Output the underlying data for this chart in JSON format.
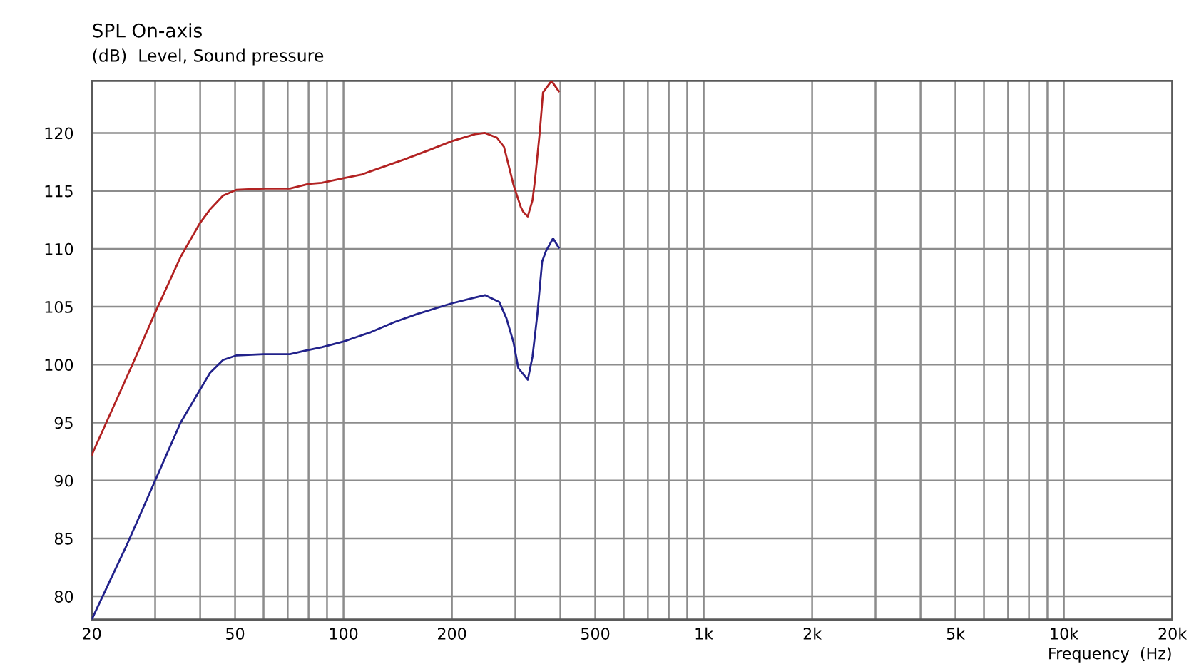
{
  "chart_data": {
    "type": "line",
    "title": "SPL On-axis",
    "ylabel": "(dB)  Level, Sound pressure",
    "xlabel": "Frequency  (Hz)",
    "log": "x",
    "grid": true,
    "marker": "none",
    "line_style": "solid",
    "xlim": [
      20,
      20000
    ],
    "xticks": [
      20,
      {
        "value": 30,
        "label": null
      },
      {
        "value": 40,
        "label": null
      },
      50,
      {
        "value": 60,
        "label": null
      },
      {
        "value": 70,
        "label": null
      },
      {
        "value": 80,
        "label": null
      },
      {
        "value": 90,
        "label": null
      },
      100,
      200,
      {
        "value": 300,
        "label": null
      },
      {
        "value": 400,
        "label": null
      },
      500,
      {
        "value": 600,
        "label": null
      },
      {
        "value": 700,
        "label": null
      },
      {
        "value": 800,
        "label": null
      },
      {
        "value": 900,
        "label": null
      },
      {
        "value": 1000,
        "label": "1k"
      },
      {
        "value": 2000,
        "label": "2k"
      },
      {
        "value": 3000,
        "label": null
      },
      {
        "value": 4000,
        "label": null
      },
      {
        "value": 5000,
        "label": "5k"
      },
      {
        "value": 6000,
        "label": null
      },
      {
        "value": 7000,
        "label": null
      },
      {
        "value": 8000,
        "label": null
      },
      {
        "value": 9000,
        "label": null
      },
      {
        "value": 10000,
        "label": "10k"
      },
      {
        "value": 20000,
        "label": "20k"
      }
    ],
    "ylim": [
      78,
      124.5
    ],
    "yticks": [
      80,
      85,
      90,
      95,
      100,
      105,
      110,
      115,
      120
    ],
    "series": [
      {
        "color": "#b22222",
        "x": [
          20,
          22.1,
          26.1,
          29.9,
          35.3,
          39.9,
          42.6,
          46.3,
          50.5,
          60,
          71,
          80,
          87,
          100,
          112,
          119,
          147,
          172,
          200,
          232,
          247,
          266.6,
          279,
          296.6,
          310.6,
          315.4,
          324.8,
          334.8,
          340,
          350.5,
          358,
          378,
          396
        ],
        "values": [
          92.2,
          95.2,
          100.2,
          104.4,
          109.3,
          112.2,
          113.4,
          114.6,
          115.1,
          115.2,
          115.2,
          115.6,
          115.7,
          116.1,
          116.4,
          116.7,
          117.7,
          118.5,
          119.3,
          119.9,
          120.0,
          119.6,
          118.8,
          115.5,
          113.6,
          113.2,
          112.8,
          114.2,
          115.9,
          120.0,
          123.5,
          124.5,
          123.6
        ]
      },
      {
        "color": "#22228b",
        "x": [
          20,
          25,
          30,
          31.3,
          35.3,
          39.9,
          42.6,
          46.3,
          50.5,
          60,
          71,
          78,
          87,
          100,
          119,
          139,
          161,
          200,
          232,
          247,
          270.8,
          283.4,
          296.6,
          305.7,
          324.8,
          334.8,
          345.4,
          356,
          364.8,
          381.8,
          396
        ],
        "values": [
          78.0,
          84.4,
          90.0,
          91.3,
          95.0,
          97.8,
          99.3,
          100.4,
          100.8,
          100.9,
          100.9,
          101.2,
          101.5,
          102.0,
          102.8,
          103.7,
          104.4,
          105.3,
          105.8,
          106.0,
          105.4,
          104.0,
          101.9,
          99.7,
          98.7,
          100.7,
          104.4,
          108.9,
          109.8,
          110.9,
          110.1
        ]
      }
    ]
  }
}
